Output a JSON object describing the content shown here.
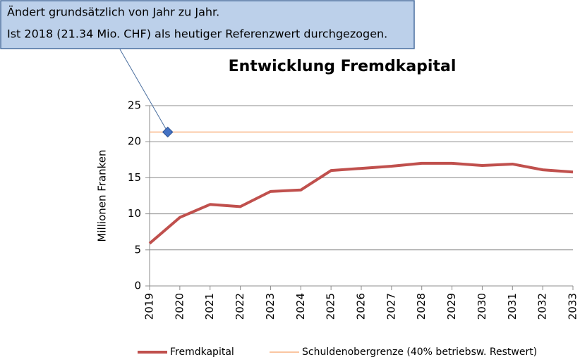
{
  "chart_data": {
    "type": "line",
    "title": "Entwicklung Fremdkapital",
    "y_label": "Millionen Franken",
    "annotation": [
      "Ändert grundsätzlich von Jahr zu Jahr.",
      "Ist 2018 (21.34 Mio. CHF) als heutiger Referenzwert durchgezogen."
    ],
    "categories": [
      "2019",
      "2020",
      "2021",
      "2022",
      "2023",
      "2024",
      "2025",
      "2026",
      "2027",
      "2028",
      "2029",
      "2030",
      "2031",
      "2032",
      "2033"
    ],
    "series": [
      {
        "name": "Fremdkapital",
        "color": "#c0504d",
        "values": [
          5.9,
          9.5,
          11.3,
          11.0,
          13.1,
          13.3,
          16.0,
          16.3,
          16.6,
          17.0,
          17.0,
          16.7,
          16.9,
          16.1,
          15.8
        ]
      },
      {
        "name": "Schuldenobergrenze (40% betriebsw. Restwert)",
        "color": "#f9b482",
        "values": [
          21.34,
          21.34,
          21.34,
          21.34,
          21.34,
          21.34,
          21.34,
          21.34,
          21.34,
          21.34,
          21.34,
          21.34,
          21.34,
          21.34,
          21.34
        ]
      }
    ],
    "ylim": [
      0,
      25
    ],
    "yticks": [
      0,
      5,
      10,
      15,
      20,
      25
    ],
    "grid": true,
    "legend": "bottom"
  }
}
